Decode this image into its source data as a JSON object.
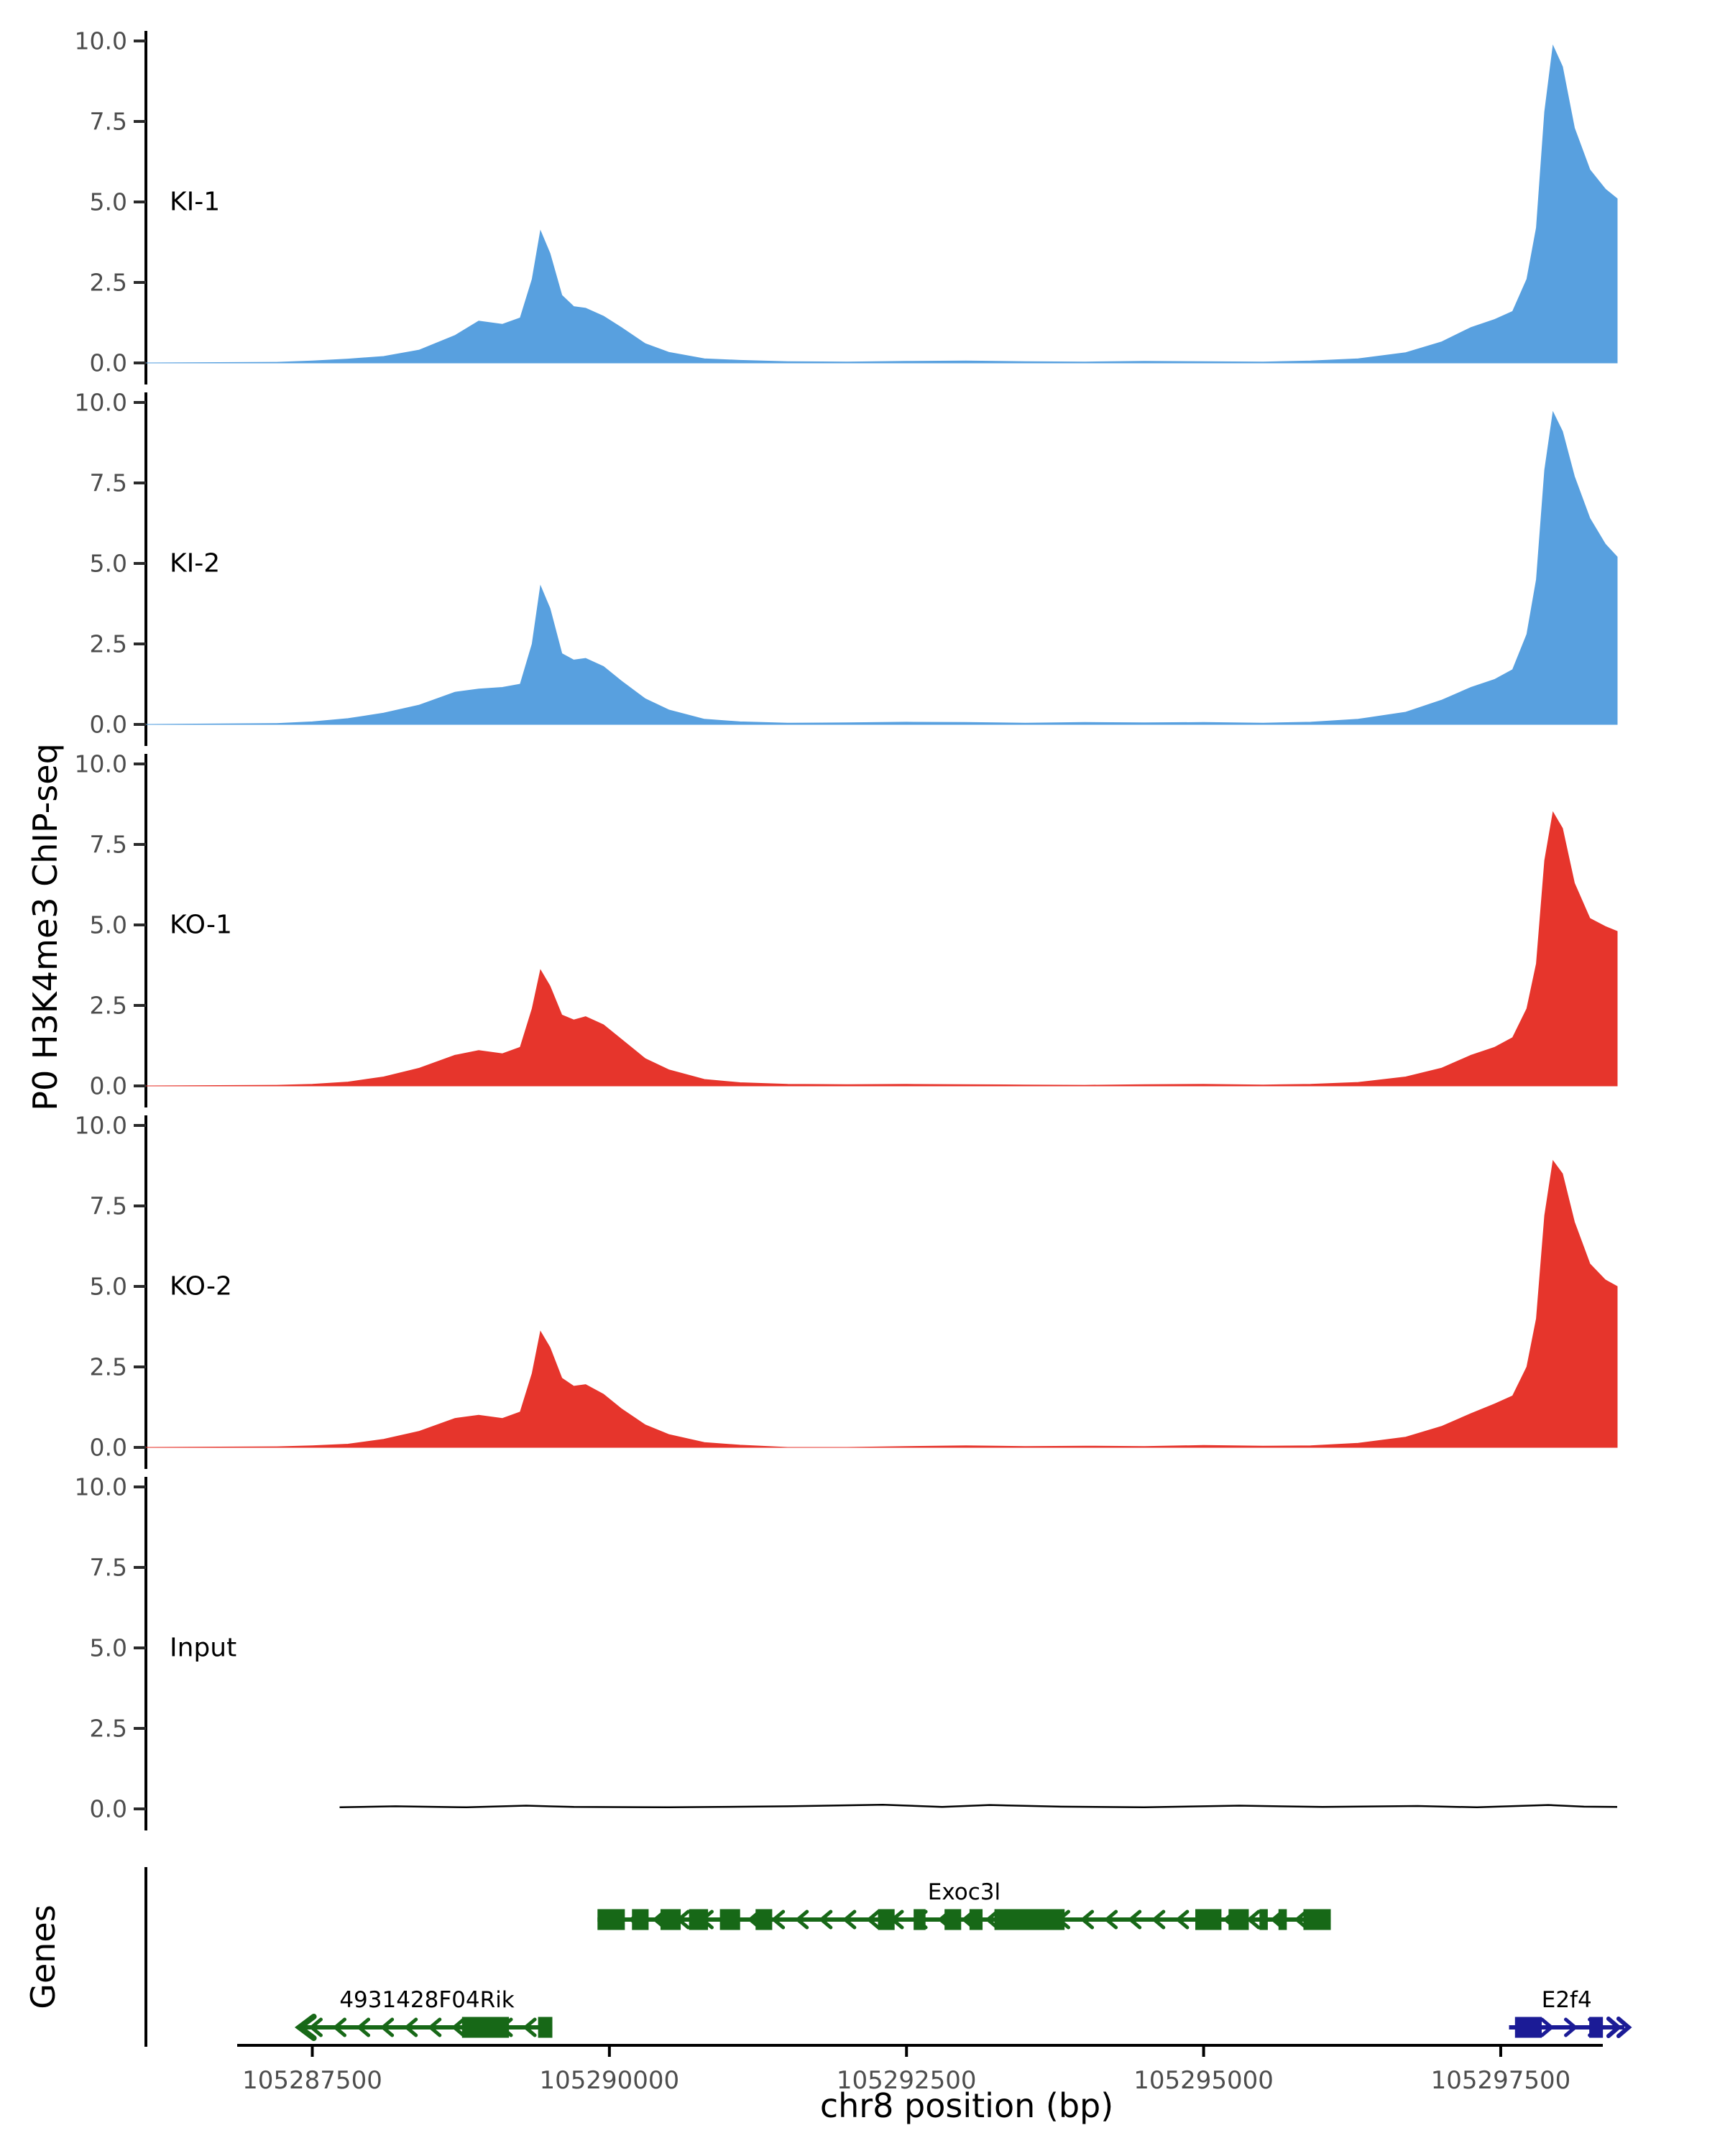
{
  "figure": {
    "y_axis_title": "P0 H3K4me3 ChIP-seq",
    "x_axis_title": "chr8 position (bp)",
    "genes_panel_label": "Genes"
  },
  "chart_data": {
    "type": "area",
    "title": "",
    "xlabel": "chr8 position (bp)",
    "ylabel": "P0 H3K4me3 ChIP-seq",
    "grid": false,
    "legend_position": "none (labels inside each track panel)",
    "x_range_bp": [
      105286100,
      105298480
    ],
    "ylim": [
      0,
      10
    ],
    "yticks": [
      0.0,
      2.5,
      5.0,
      7.5,
      10.0
    ],
    "ytick_labels": [
      "0.0",
      "2.5",
      "5.0",
      "7.5",
      "10.0"
    ],
    "xticks": [
      105287500,
      105290000,
      105292500,
      105295000,
      105297500
    ],
    "xtick_labels": [
      "105287500",
      "105290000",
      "105292500",
      "105295000",
      "105297500"
    ],
    "x_bp": [
      105286100,
      105287200,
      105287500,
      105287800,
      105288100,
      105288400,
      105288700,
      105288900,
      105289100,
      105289250,
      105289350,
      105289420,
      105289500,
      105289600,
      105289700,
      105289800,
      105289950,
      105290100,
      105290300,
      105290500,
      105290800,
      105291100,
      105291500,
      105292000,
      105292500,
      105293000,
      105293500,
      105294000,
      105294500,
      105295000,
      105295500,
      105295900,
      105296300,
      105296700,
      105297000,
      105297250,
      105297450,
      105297600,
      105297720,
      105297800,
      105297870,
      105297940,
      105298020,
      105298120,
      105298250,
      105298380,
      105298480
    ],
    "tracks": [
      {
        "label": "KI-1",
        "style": "area",
        "color": "#58A0DF",
        "values": [
          0,
          0.02,
          0.06,
          0.12,
          0.2,
          0.4,
          0.85,
          1.3,
          1.2,
          1.4,
          2.6,
          4.1,
          3.4,
          2.1,
          1.75,
          1.7,
          1.45,
          1.1,
          0.6,
          0.33,
          0.13,
          0.08,
          0.04,
          0.03,
          0.05,
          0.06,
          0.04,
          0.03,
          0.05,
          0.04,
          0.03,
          0.06,
          0.13,
          0.32,
          0.65,
          1.1,
          1.35,
          1.6,
          2.6,
          4.2,
          7.8,
          9.85,
          9.2,
          7.3,
          6.0,
          5.4,
          5.1
        ]
      },
      {
        "label": "KI-2",
        "style": "area",
        "color": "#58A0DF",
        "values": [
          0,
          0.03,
          0.08,
          0.18,
          0.35,
          0.6,
          1.0,
          1.1,
          1.15,
          1.25,
          2.5,
          4.3,
          3.6,
          2.2,
          2.0,
          2.05,
          1.8,
          1.35,
          0.8,
          0.45,
          0.16,
          0.08,
          0.04,
          0.05,
          0.07,
          0.06,
          0.04,
          0.06,
          0.05,
          0.06,
          0.04,
          0.07,
          0.16,
          0.38,
          0.75,
          1.15,
          1.4,
          1.7,
          2.8,
          4.5,
          7.9,
          9.7,
          9.1,
          7.7,
          6.4,
          5.6,
          5.2
        ]
      },
      {
        "label": "KO-1",
        "style": "area",
        "color": "#E6352C",
        "values": [
          0,
          0.02,
          0.05,
          0.12,
          0.28,
          0.55,
          0.95,
          1.1,
          1.0,
          1.2,
          2.4,
          3.6,
          3.1,
          2.2,
          2.05,
          2.15,
          1.9,
          1.45,
          0.85,
          0.5,
          0.2,
          0.1,
          0.05,
          0.04,
          0.05,
          0.04,
          0.03,
          0.02,
          0.04,
          0.05,
          0.03,
          0.05,
          0.11,
          0.28,
          0.55,
          0.95,
          1.2,
          1.5,
          2.4,
          3.8,
          7.0,
          8.5,
          8.0,
          6.3,
          5.2,
          4.95,
          4.8
        ]
      },
      {
        "label": "KO-2",
        "style": "area",
        "color": "#E6352C",
        "values": [
          0,
          0.02,
          0.05,
          0.1,
          0.25,
          0.5,
          0.9,
          1.0,
          0.9,
          1.1,
          2.3,
          3.6,
          3.1,
          2.15,
          1.9,
          1.95,
          1.65,
          1.2,
          0.7,
          0.4,
          0.15,
          0.07,
          0,
          0,
          0.03,
          0.05,
          0.03,
          0.04,
          0.03,
          0.06,
          0.04,
          0.05,
          0.13,
          0.32,
          0.65,
          1.05,
          1.35,
          1.6,
          2.5,
          4.0,
          7.2,
          8.9,
          8.5,
          7.0,
          5.7,
          5.2,
          5.0
        ]
      },
      {
        "label": "Input",
        "style": "line",
        "color": "#000000",
        "points": [
          [
            105287730,
            0.05
          ],
          [
            105288200,
            0.08
          ],
          [
            105288800,
            0.05
          ],
          [
            105289300,
            0.1
          ],
          [
            105289700,
            0.06
          ],
          [
            105290500,
            0.05
          ],
          [
            105291500,
            0.08
          ],
          [
            105292300,
            0.13
          ],
          [
            105292800,
            0.06
          ],
          [
            105293200,
            0.12
          ],
          [
            105293800,
            0.07
          ],
          [
            105294500,
            0.05
          ],
          [
            105295300,
            0.1
          ],
          [
            105296000,
            0.06
          ],
          [
            105296800,
            0.09
          ],
          [
            105297300,
            0.05
          ],
          [
            105297900,
            0.12
          ],
          [
            105298200,
            0.07
          ],
          [
            105298480,
            0.06
          ]
        ]
      }
    ],
    "genes": [
      {
        "name": "Exoc3l",
        "color": "#176817",
        "strand": "-",
        "row": 0,
        "terminal": "none",
        "start": 105289900,
        "end": 105296070,
        "exons": [
          [
            105289900,
            105290130
          ],
          [
            105290190,
            105290330
          ],
          [
            105290430,
            105290600
          ],
          [
            105290670,
            105290830
          ],
          [
            105290930,
            105291100
          ],
          [
            105291230,
            105291370
          ],
          [
            105292260,
            105292400
          ],
          [
            105292560,
            105292660
          ],
          [
            105292820,
            105292960
          ],
          [
            105293030,
            105293140
          ],
          [
            105293240,
            105293830
          ],
          [
            105294930,
            105295150
          ],
          [
            105295210,
            105295380
          ],
          [
            105295470,
            105295540
          ],
          [
            105295630,
            105295700
          ],
          [
            105295840,
            105296070
          ]
        ]
      },
      {
        "name": "4931428F04Rik",
        "color": "#176817",
        "strand": "-",
        "row": 1,
        "terminal": "arrow-start",
        "start": 105287410,
        "end": 105289520,
        "exons": [
          [
            105288760,
            105289155
          ],
          [
            105289400,
            105289520
          ]
        ]
      },
      {
        "name": "E2f4",
        "color": "#1B1B96",
        "strand": "+",
        "row": 1,
        "terminal": "double-chevron-end",
        "start": 105297570,
        "end": 105298540,
        "exons": [
          [
            105297620,
            105297845
          ],
          [
            105298245,
            105298360
          ]
        ]
      }
    ]
  }
}
